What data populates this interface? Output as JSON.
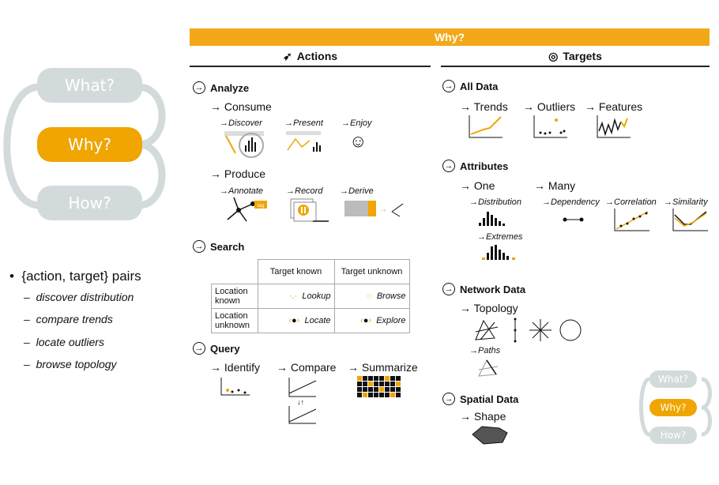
{
  "left_pills": {
    "what": "What?",
    "why": "Why?",
    "how": "How?"
  },
  "bullets": {
    "heading": "{action, target} pairs",
    "items": [
      "discover distribution",
      "compare trends",
      "locate outliers",
      "browse topology"
    ]
  },
  "banner": "Why?",
  "actions": {
    "title": "Actions",
    "analyze": {
      "label": "Analyze",
      "consume": "Consume",
      "discover": "Discover",
      "present": "Present",
      "enjoy": "Enjoy",
      "produce": "Produce",
      "annotate": "Annotate",
      "record": "Record",
      "derive": "Derive",
      "tag": "tag"
    },
    "search": {
      "label": "Search",
      "col_known": "Target known",
      "col_unknown": "Target unknown",
      "row_known": "Location known",
      "row_unknown": "Location unknown",
      "lookup": "Lookup",
      "browse": "Browse",
      "locate": "Locate",
      "explore": "Explore"
    },
    "query": {
      "label": "Query",
      "identify": "Identify",
      "compare": "Compare",
      "summarize": "Summarize"
    }
  },
  "targets": {
    "title": "Targets",
    "all_data": {
      "label": "All Data",
      "trends": "Trends",
      "outliers": "Outliers",
      "features": "Features"
    },
    "attributes": {
      "label": "Attributes",
      "one": "One",
      "many": "Many",
      "distribution": "Distribution",
      "extremes": "Extremes",
      "dependency": "Dependency",
      "correlation": "Correlation",
      "similarity": "Similarity"
    },
    "network": {
      "label": "Network Data",
      "topology": "Topology",
      "paths": "Paths"
    },
    "spatial": {
      "label": "Spatial Data",
      "shape": "Shape"
    }
  },
  "corner_pills": {
    "what": "What?",
    "why": "Why?",
    "how": "How?"
  },
  "colors": {
    "accent": "#f3a81a",
    "gray_pill": "#d3dadb",
    "arrow": "→"
  }
}
